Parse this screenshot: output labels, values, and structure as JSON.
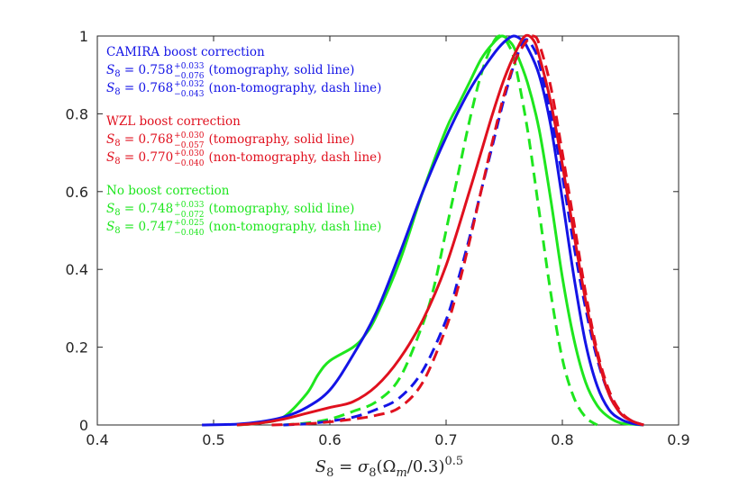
{
  "chart_data": {
    "type": "line",
    "xlabel": "S₈ = σ₈(Ωm/0.3)^0.5",
    "xlabel_parts": {
      "lhs": "S",
      "lhs_sub": "8",
      "eq": " = ",
      "sigma": "σ",
      "sigma_sub": "8",
      "open": "(Ω",
      "omega_sub": "m",
      "rest": "/0.3)",
      "exp": "0.5"
    },
    "ylabel": "",
    "xlim": [
      0.4,
      0.9
    ],
    "ylim": [
      0,
      1
    ],
    "xticks": [
      0.4,
      0.5,
      0.6,
      0.7,
      0.8,
      0.9
    ],
    "xtick_labels": [
      "0.4",
      "0.5",
      "0.6",
      "0.7",
      "0.8",
      "0.9"
    ],
    "yticks": [
      0,
      0.2,
      0.4,
      0.6,
      0.8,
      1
    ],
    "ytick_labels": [
      "0",
      "0.2",
      "0.4",
      "0.6",
      "0.8",
      "1"
    ],
    "grid": false,
    "legend_placement": "top-left",
    "legend_groups": [
      {
        "title": "CAMIRA boost correction",
        "color": "#1414e6",
        "entries": [
          {
            "value": "0.758",
            "sup": "+0.033",
            "sub": "−0.076",
            "note": "(tomography, solid line)"
          },
          {
            "value": "0.768",
            "sup": "+0.032",
            "sub": "−0.043",
            "note": "(non-tomography, dash line)"
          }
        ]
      },
      {
        "title": "WZL boost correction",
        "color": "#e0101e",
        "entries": [
          {
            "value": "0.768",
            "sup": "+0.030",
            "sub": "−0.057",
            "note": "(tomography, solid line)"
          },
          {
            "value": "0.770",
            "sup": "+0.030",
            "sub": "−0.040",
            "note": "(non-tomography, dash line)"
          }
        ]
      },
      {
        "title": "No boost correction",
        "color": "#1ee61e",
        "entries": [
          {
            "value": "0.748",
            "sup": "+0.033",
            "sub": "−0.072",
            "note": "(tomography, solid line)"
          },
          {
            "value": "0.747",
            "sup": "+0.025",
            "sub": "−0.040",
            "note": "(non-tomography, dash line)"
          }
        ]
      }
    ],
    "legend_prefix": "S",
    "legend_prefix_sub": "8",
    "legend_eq": " = ",
    "series": [
      {
        "group": "No boost correction",
        "style": "solid",
        "color": "#1ee61e",
        "x": [
          0.52,
          0.54,
          0.56,
          0.58,
          0.59,
          0.6,
          0.62,
          0.63,
          0.64,
          0.66,
          0.68,
          0.7,
          0.71,
          0.72,
          0.73,
          0.74,
          0.748,
          0.755,
          0.76,
          0.77,
          0.78,
          0.79,
          0.8,
          0.81,
          0.82,
          0.83,
          0.84,
          0.85,
          0.86,
          0.87
        ],
        "y": [
          0.0,
          0.005,
          0.02,
          0.08,
          0.13,
          0.165,
          0.2,
          0.23,
          0.28,
          0.42,
          0.6,
          0.76,
          0.82,
          0.88,
          0.94,
          0.98,
          1.0,
          0.985,
          0.96,
          0.88,
          0.76,
          0.58,
          0.38,
          0.22,
          0.11,
          0.05,
          0.02,
          0.005,
          0.002,
          0.0
        ]
      },
      {
        "group": "No boost correction",
        "style": "dash",
        "color": "#1ee61e",
        "x": [
          0.56,
          0.58,
          0.6,
          0.62,
          0.64,
          0.66,
          0.68,
          0.69,
          0.7,
          0.71,
          0.72,
          0.73,
          0.74,
          0.747,
          0.755,
          0.76,
          0.77,
          0.78,
          0.79,
          0.8,
          0.81,
          0.82,
          0.83
        ],
        "y": [
          0.0,
          0.005,
          0.015,
          0.035,
          0.06,
          0.12,
          0.26,
          0.36,
          0.5,
          0.64,
          0.78,
          0.9,
          0.98,
          1.0,
          0.97,
          0.92,
          0.76,
          0.55,
          0.34,
          0.17,
          0.07,
          0.02,
          0.0
        ]
      },
      {
        "group": "CAMIRA boost correction",
        "style": "solid",
        "color": "#1414e6",
        "x": [
          0.49,
          0.52,
          0.54,
          0.56,
          0.58,
          0.6,
          0.62,
          0.64,
          0.66,
          0.68,
          0.7,
          0.72,
          0.74,
          0.75,
          0.758,
          0.765,
          0.77,
          0.78,
          0.79,
          0.8,
          0.81,
          0.82,
          0.83,
          0.84,
          0.85,
          0.86,
          0.87
        ],
        "y": [
          0.0,
          0.002,
          0.008,
          0.02,
          0.045,
          0.09,
          0.18,
          0.29,
          0.44,
          0.6,
          0.74,
          0.86,
          0.95,
          0.985,
          1.0,
          0.99,
          0.97,
          0.9,
          0.77,
          0.58,
          0.38,
          0.21,
          0.1,
          0.04,
          0.015,
          0.004,
          0.0
        ]
      },
      {
        "group": "CAMIRA boost correction",
        "style": "dash",
        "color": "#1414e6",
        "x": [
          0.56,
          0.58,
          0.6,
          0.62,
          0.64,
          0.66,
          0.68,
          0.7,
          0.71,
          0.72,
          0.73,
          0.74,
          0.75,
          0.76,
          0.768,
          0.775,
          0.78,
          0.79,
          0.8,
          0.81,
          0.82,
          0.83,
          0.84,
          0.85,
          0.86,
          0.87
        ],
        "y": [
          0.0,
          0.003,
          0.01,
          0.02,
          0.04,
          0.07,
          0.14,
          0.27,
          0.37,
          0.48,
          0.6,
          0.72,
          0.84,
          0.94,
          0.99,
          0.97,
          0.93,
          0.8,
          0.64,
          0.46,
          0.3,
          0.17,
          0.08,
          0.03,
          0.01,
          0.0
        ]
      },
      {
        "group": "WZL boost correction",
        "style": "solid",
        "color": "#e0101e",
        "x": [
          0.52,
          0.54,
          0.56,
          0.58,
          0.6,
          0.62,
          0.64,
          0.66,
          0.68,
          0.7,
          0.72,
          0.73,
          0.74,
          0.75,
          0.76,
          0.768,
          0.775,
          0.78,
          0.79,
          0.8,
          0.81,
          0.82,
          0.83,
          0.84,
          0.85,
          0.86,
          0.87
        ],
        "y": [
          0.0,
          0.005,
          0.015,
          0.03,
          0.045,
          0.06,
          0.1,
          0.17,
          0.27,
          0.41,
          0.6,
          0.7,
          0.8,
          0.89,
          0.96,
          1.0,
          0.99,
          0.95,
          0.83,
          0.67,
          0.49,
          0.32,
          0.18,
          0.08,
          0.03,
          0.01,
          0.0
        ]
      },
      {
        "group": "WZL boost correction",
        "style": "dash",
        "color": "#e0101e",
        "x": [
          0.55,
          0.58,
          0.6,
          0.62,
          0.64,
          0.66,
          0.68,
          0.7,
          0.71,
          0.72,
          0.73,
          0.74,
          0.75,
          0.76,
          0.77,
          0.775,
          0.78,
          0.79,
          0.8,
          0.81,
          0.82,
          0.83,
          0.84,
          0.85,
          0.86,
          0.87
        ],
        "y": [
          0.0,
          0.003,
          0.008,
          0.015,
          0.025,
          0.045,
          0.11,
          0.25,
          0.35,
          0.47,
          0.6,
          0.73,
          0.85,
          0.94,
          0.99,
          1.0,
          0.98,
          0.87,
          0.7,
          0.52,
          0.34,
          0.19,
          0.09,
          0.035,
          0.01,
          0.0
        ]
      }
    ]
  }
}
